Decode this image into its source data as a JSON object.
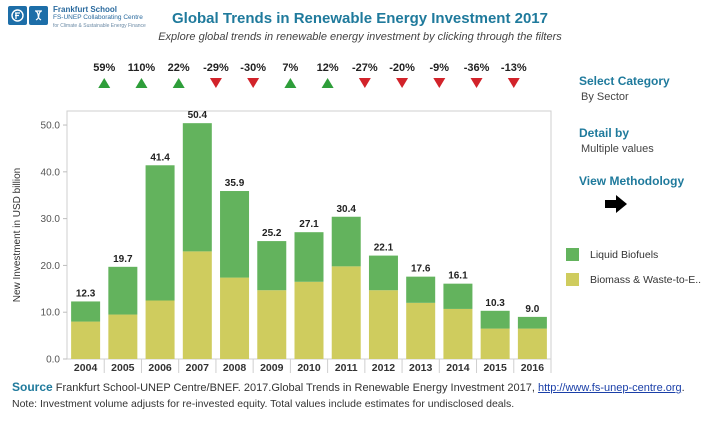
{
  "logo": {
    "line1": "Frankfurt School",
    "line2": "FS-UNEP Collaborating Centre",
    "line3": "for Climate & Sustainable Energy Finance"
  },
  "header": {
    "title": "Global Trends in Renewable Energy Investment 2017",
    "subtitle": "Explore global trends in renewable energy investment by clicking through the filters"
  },
  "filters": {
    "category_label": "Select Category",
    "category_value": "By Sector",
    "detail_label": "Detail by",
    "detail_value": "Multiple values",
    "methodology_label": "View Methodology"
  },
  "colors": {
    "biofuels": "#63b35d",
    "biomass": "#cfcc5e",
    "up": "#2e9e3a",
    "down": "#d2232a",
    "accent": "#1f7a9c",
    "logo_blue": "#1d6ea8"
  },
  "chart_data": {
    "type": "bar",
    "stacked": true,
    "categories": [
      "2004",
      "2005",
      "2006",
      "2007",
      "2008",
      "2009",
      "2010",
      "2011",
      "2012",
      "2013",
      "2014",
      "2015",
      "2016"
    ],
    "totals": [
      12.3,
      19.7,
      41.4,
      50.4,
      35.9,
      25.2,
      27.1,
      30.4,
      22.1,
      17.6,
      16.1,
      10.3,
      9.0
    ],
    "total_labels": [
      "12.3",
      "19.7",
      "41.4",
      "50.4",
      "35.9",
      "25.2",
      "27.1",
      "30.4",
      "22.1",
      "17.6",
      "16.1",
      "10.3",
      "9.0"
    ],
    "series": [
      {
        "name": "Biomass & Waste-to-E..",
        "values": [
          8.0,
          9.5,
          12.5,
          23.0,
          17.4,
          14.7,
          16.5,
          19.8,
          14.7,
          12.0,
          10.7,
          6.5,
          6.5
        ]
      },
      {
        "name": "Liquid Biofuels",
        "values": [
          4.3,
          10.2,
          28.9,
          27.4,
          18.5,
          10.5,
          10.6,
          10.6,
          7.4,
          5.6,
          5.4,
          3.8,
          2.5
        ]
      }
    ],
    "changes": [
      "59%",
      "110%",
      "22%",
      "-29%",
      "-30%",
      "7%",
      "12%",
      "-27%",
      "-20%",
      "-9%",
      "-36%",
      "-13%"
    ],
    "change_directions": [
      "up",
      "up",
      "up",
      "down",
      "down",
      "up",
      "up",
      "down",
      "down",
      "down",
      "down",
      "down"
    ],
    "ylabel": "New Investment in USD billion",
    "ylim": [
      0,
      53
    ],
    "yticks": [
      0,
      10,
      20,
      30,
      40,
      50
    ],
    "ytick_labels": [
      "0.0",
      "10.0",
      "20.0",
      "30.0",
      "40.0",
      "50.0"
    ],
    "grid": false,
    "legend_position": "right"
  },
  "footer": {
    "source_label": "Source",
    "source_text": " Frankfurt School-UNEP Centre/BNEF. 2017.Global Trends in Renewable Energy Investment 2017, ",
    "source_link": "http://www.fs-unep-centre.org",
    "source_end": ".",
    "note": "Note: Investment volume adjusts for re-invested equity. Total values include estimates for undisclosed deals."
  }
}
